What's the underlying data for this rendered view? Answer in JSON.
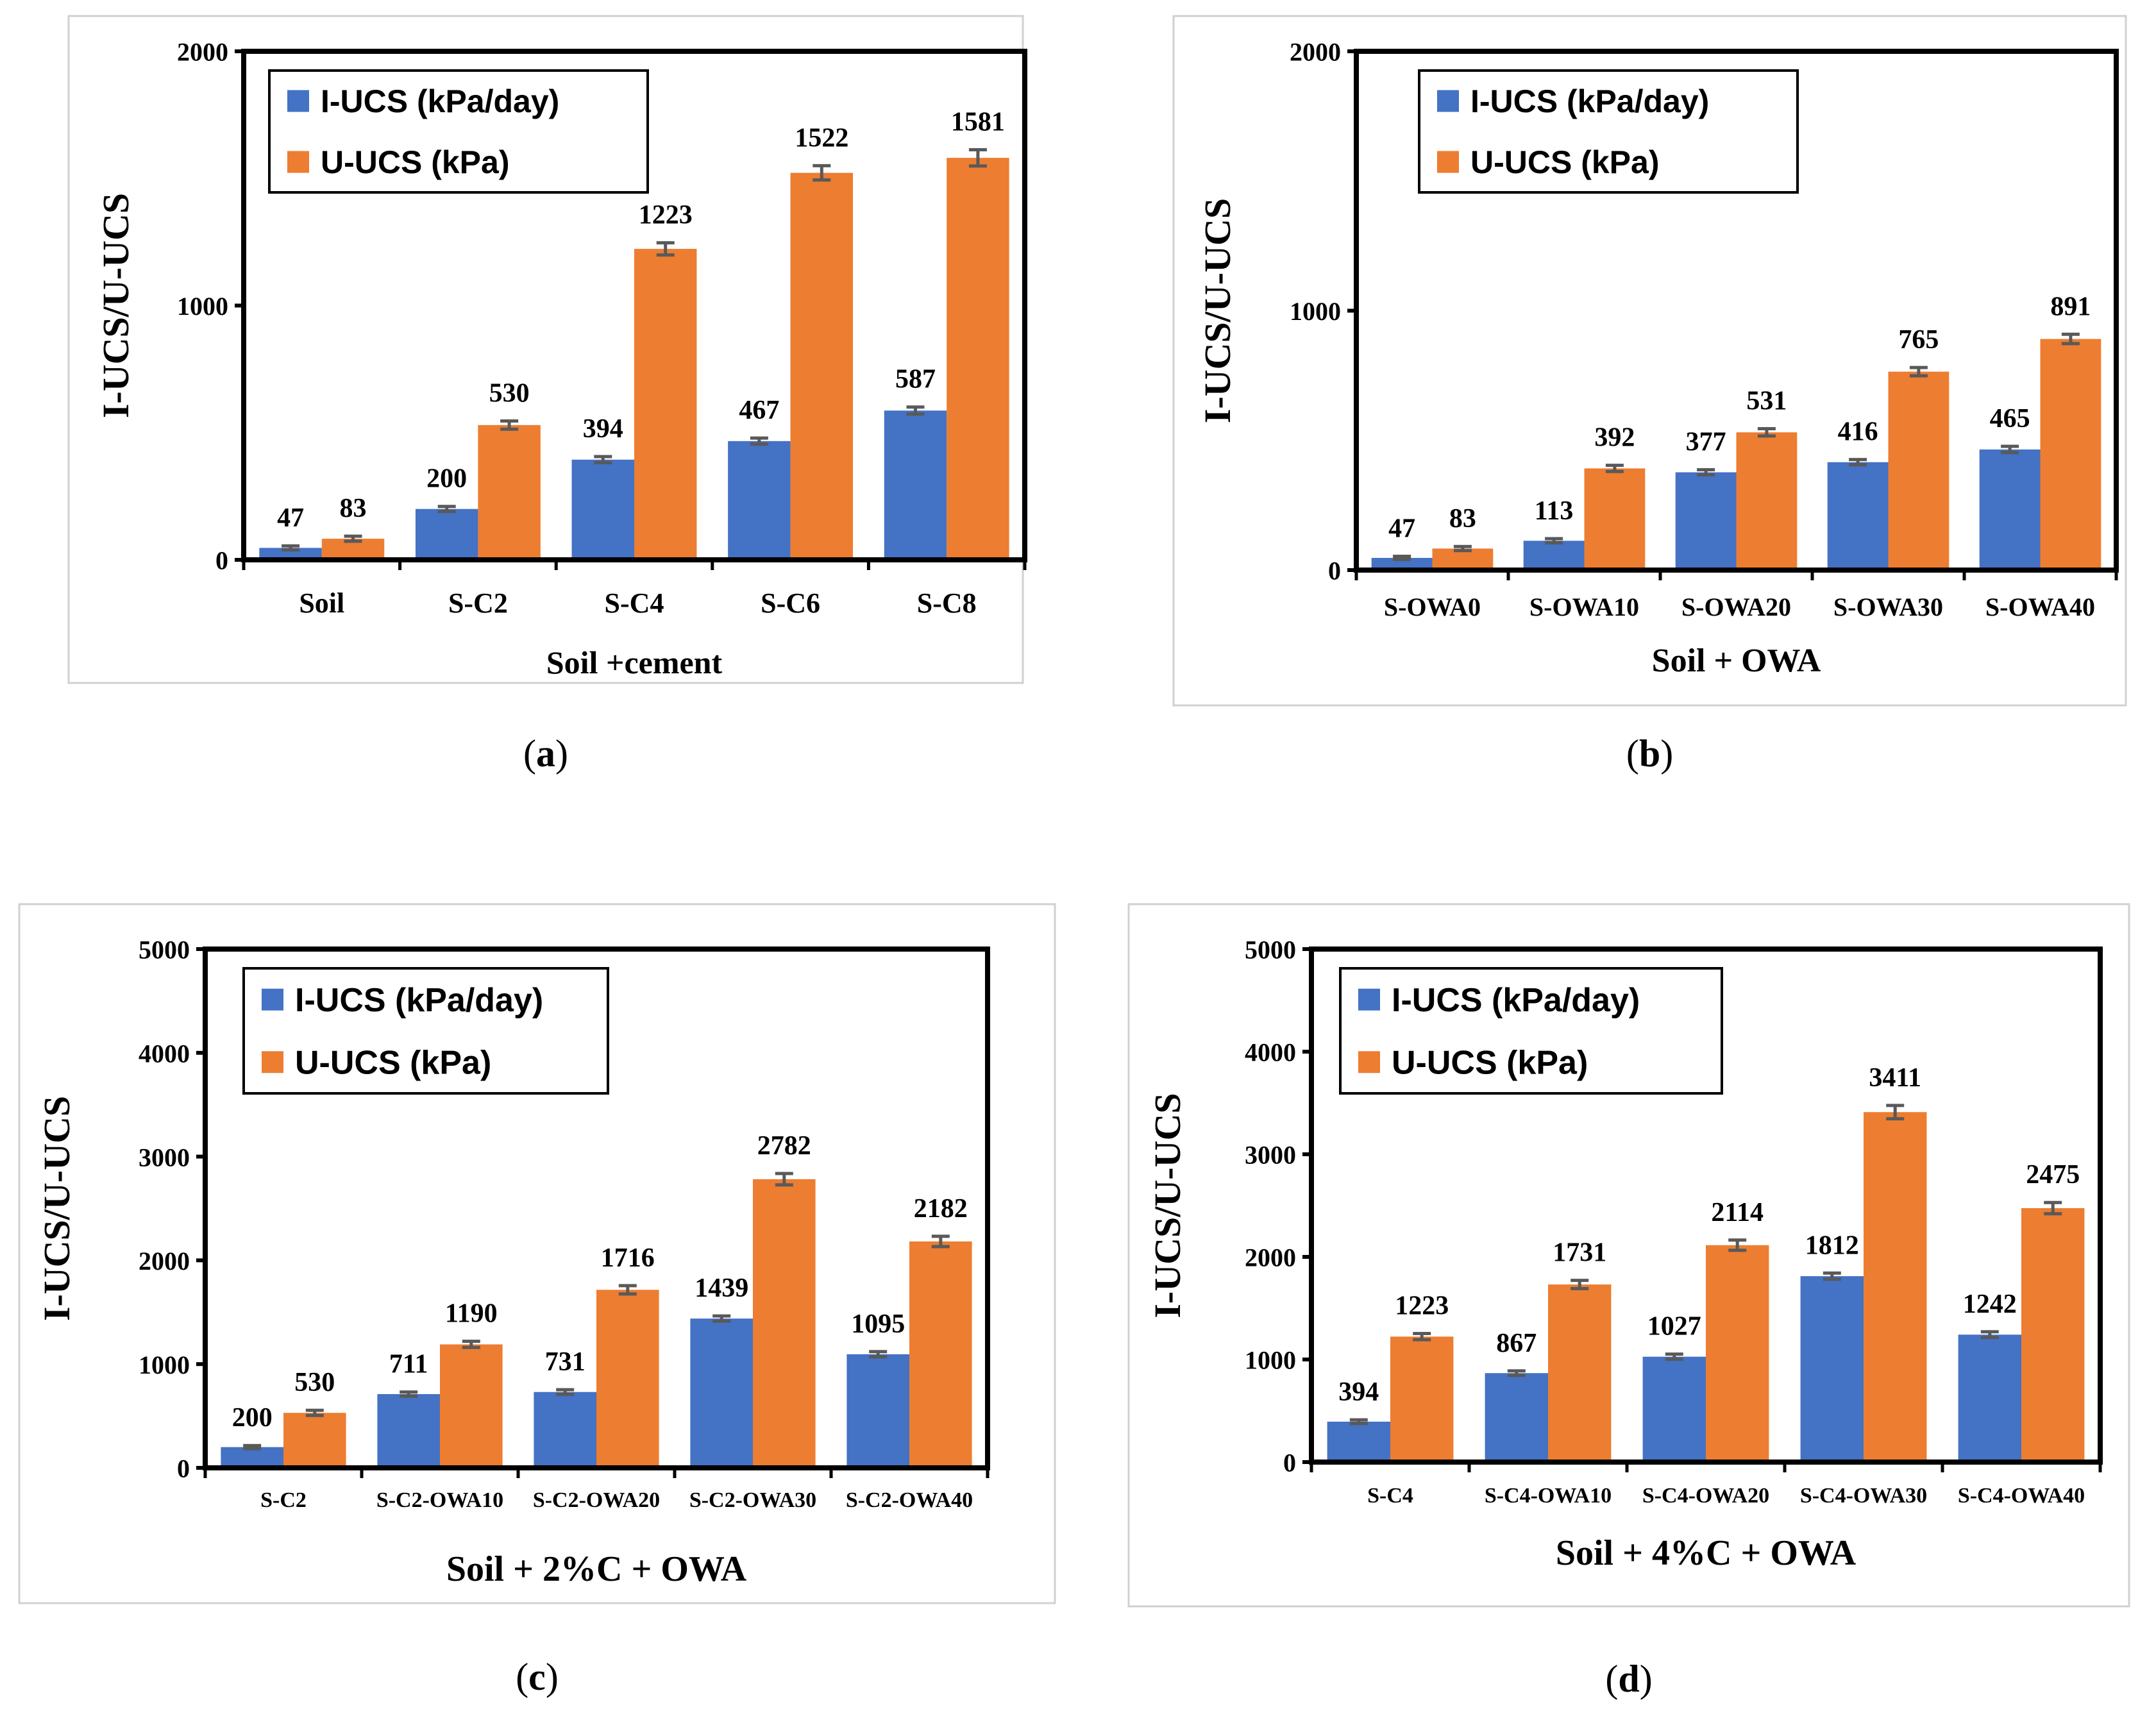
{
  "chart_data": [
    {
      "id": "a",
      "type": "bar",
      "caption": "a",
      "title": "",
      "xlabel": "Soil +cement",
      "ylabel": "I-UCS/U-UCS",
      "ylim": [
        0,
        2000
      ],
      "yticks": [
        0,
        1000,
        2000
      ],
      "categories": [
        "Soil",
        "S-C2",
        "S-C4",
        "S-C6",
        "S-C8"
      ],
      "series": [
        {
          "name": "I-UCS (kPa/day)",
          "color": "#4472C4",
          "values": [
            47,
            200,
            394,
            467,
            587
          ],
          "errors": [
            8,
            10,
            12,
            12,
            14
          ]
        },
        {
          "name": "U-UCS (kPa)",
          "color": "#ED7D31",
          "values": [
            83,
            530,
            1223,
            1522,
            1581
          ],
          "errors": [
            10,
            16,
            24,
            28,
            32
          ]
        }
      ],
      "legend_position": "top-left",
      "grid": false
    },
    {
      "id": "b",
      "type": "bar",
      "caption": "b",
      "title": "",
      "xlabel": "Soil + OWA",
      "ylabel": "I-UCS/U-UCS",
      "ylim": [
        0,
        2000
      ],
      "yticks": [
        0,
        1000,
        2000
      ],
      "categories": [
        "S-OWA0",
        "S-OWA10",
        "S-OWA20",
        "S-OWA30",
        "S-OWA40"
      ],
      "series": [
        {
          "name": "I-UCS (kPa/day)",
          "color": "#4472C4",
          "values": [
            47,
            113,
            377,
            416,
            465
          ],
          "errors": [
            6,
            8,
            10,
            10,
            12
          ]
        },
        {
          "name": "U-UCS (kPa)",
          "color": "#ED7D31",
          "values": [
            83,
            392,
            531,
            765,
            891
          ],
          "errors": [
            8,
            12,
            14,
            16,
            18
          ]
        }
      ],
      "legend_position": "top-left",
      "grid": false
    },
    {
      "id": "c",
      "type": "bar",
      "caption": "c",
      "title": "",
      "xlabel": "Soil + 2%C + OWA",
      "ylabel": "I-UCS/U-UCS",
      "ylim": [
        0,
        5000
      ],
      "yticks": [
        0,
        1000,
        2000,
        3000,
        4000,
        5000
      ],
      "categories": [
        "S-C2",
        "S-C2-OWA10",
        "S-C2-OWA20",
        "S-C2-OWA30",
        "S-C2-OWA40"
      ],
      "series": [
        {
          "name": "I-UCS (kPa/day)",
          "color": "#4472C4",
          "values": [
            200,
            711,
            731,
            1439,
            1095
          ],
          "errors": [
            15,
            20,
            22,
            25,
            25
          ]
        },
        {
          "name": "U-UCS (kPa)",
          "color": "#ED7D31",
          "values": [
            530,
            1190,
            1716,
            2782,
            2182
          ],
          "errors": [
            25,
            30,
            40,
            55,
            50
          ]
        }
      ],
      "legend_position": "top-left",
      "grid": false
    },
    {
      "id": "d",
      "type": "bar",
      "caption": "d",
      "title": "",
      "xlabel": "Soil + 4%C + OWA",
      "ylabel": "I-UCS/U-UCS",
      "ylim": [
        0,
        5000
      ],
      "yticks": [
        0,
        1000,
        2000,
        3000,
        4000,
        5000
      ],
      "categories": [
        "S-C4",
        "S-C4-OWA10",
        "S-C4-OWA20",
        "S-C4-OWA30",
        "S-C4-OWA40"
      ],
      "series": [
        {
          "name": "I-UCS (kPa/day)",
          "color": "#4472C4",
          "values": [
            394,
            867,
            1027,
            1812,
            1242
          ],
          "errors": [
            18,
            22,
            25,
            30,
            28
          ]
        },
        {
          "name": "U-UCS (kPa)",
          "color": "#ED7D31",
          "values": [
            1223,
            1731,
            2114,
            3411,
            2475
          ],
          "errors": [
            30,
            40,
            50,
            65,
            55
          ]
        }
      ],
      "legend_position": "top-left",
      "grid": false
    }
  ]
}
